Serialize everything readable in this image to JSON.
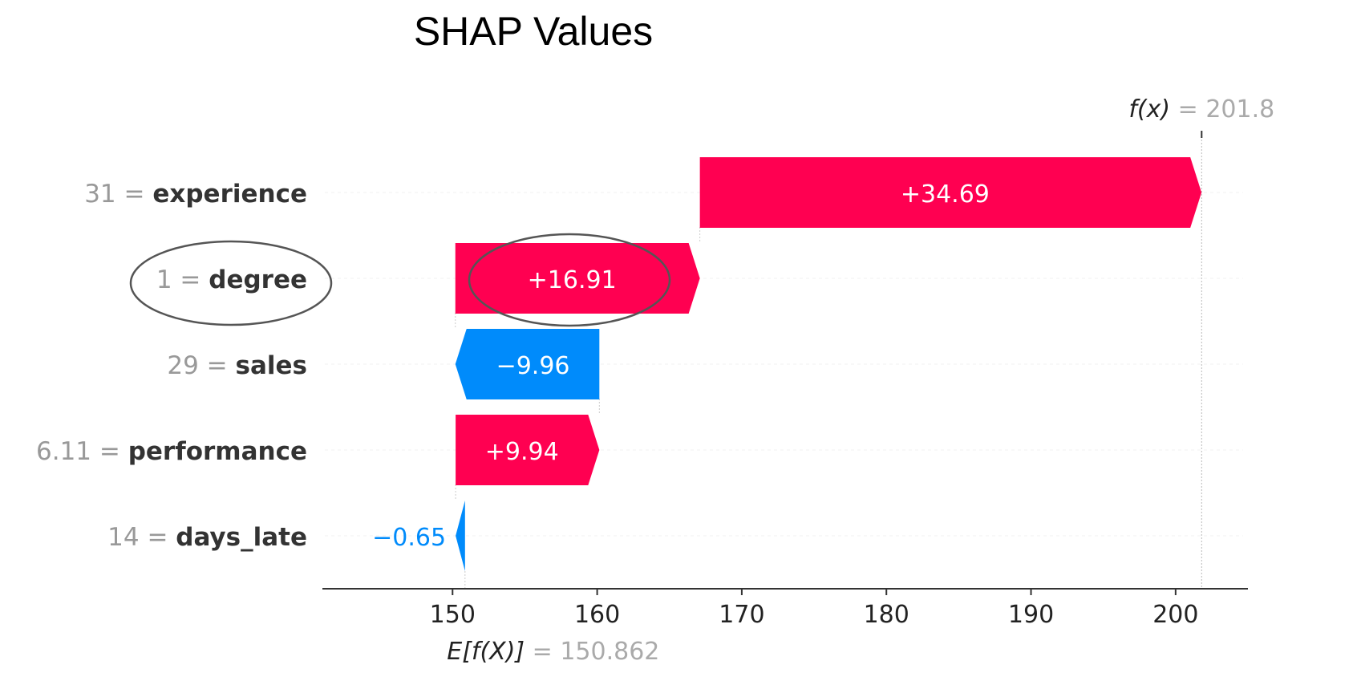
{
  "page_title": "SHAP Values",
  "colors": {
    "positive": "#ff0051",
    "negative": "#008bfb"
  },
  "chart_data": {
    "type": "bar",
    "subtype": "shap-waterfall",
    "title": "SHAP Values",
    "base_value": 150.862,
    "base_value_label": "150.862",
    "base_value_prefix": "E[f(X)]",
    "output_value": 201.8,
    "output_value_label": "201.8",
    "output_value_prefix": "f(x)",
    "xlim": [
      141,
      205
    ],
    "xticks": [
      150,
      160,
      170,
      180,
      190,
      200
    ],
    "xtick_labels": [
      "150",
      "160",
      "170",
      "180",
      "190",
      "200"
    ],
    "features": [
      {
        "name": "experience",
        "value": "31",
        "contribution": 34.69,
        "contribution_label": "+34.69"
      },
      {
        "name": "degree",
        "value": "1",
        "contribution": 16.91,
        "contribution_label": "+16.91"
      },
      {
        "name": "sales",
        "value": "29",
        "contribution": -9.96,
        "contribution_label": "−9.96"
      },
      {
        "name": "performance",
        "value": "6.11",
        "contribution": 9.94,
        "contribution_label": "+9.94"
      },
      {
        "name": "days_late",
        "value": "14",
        "contribution": -0.65,
        "contribution_label": "−0.65"
      }
    ],
    "highlighted_features": [
      "degree"
    ],
    "grid": false
  }
}
